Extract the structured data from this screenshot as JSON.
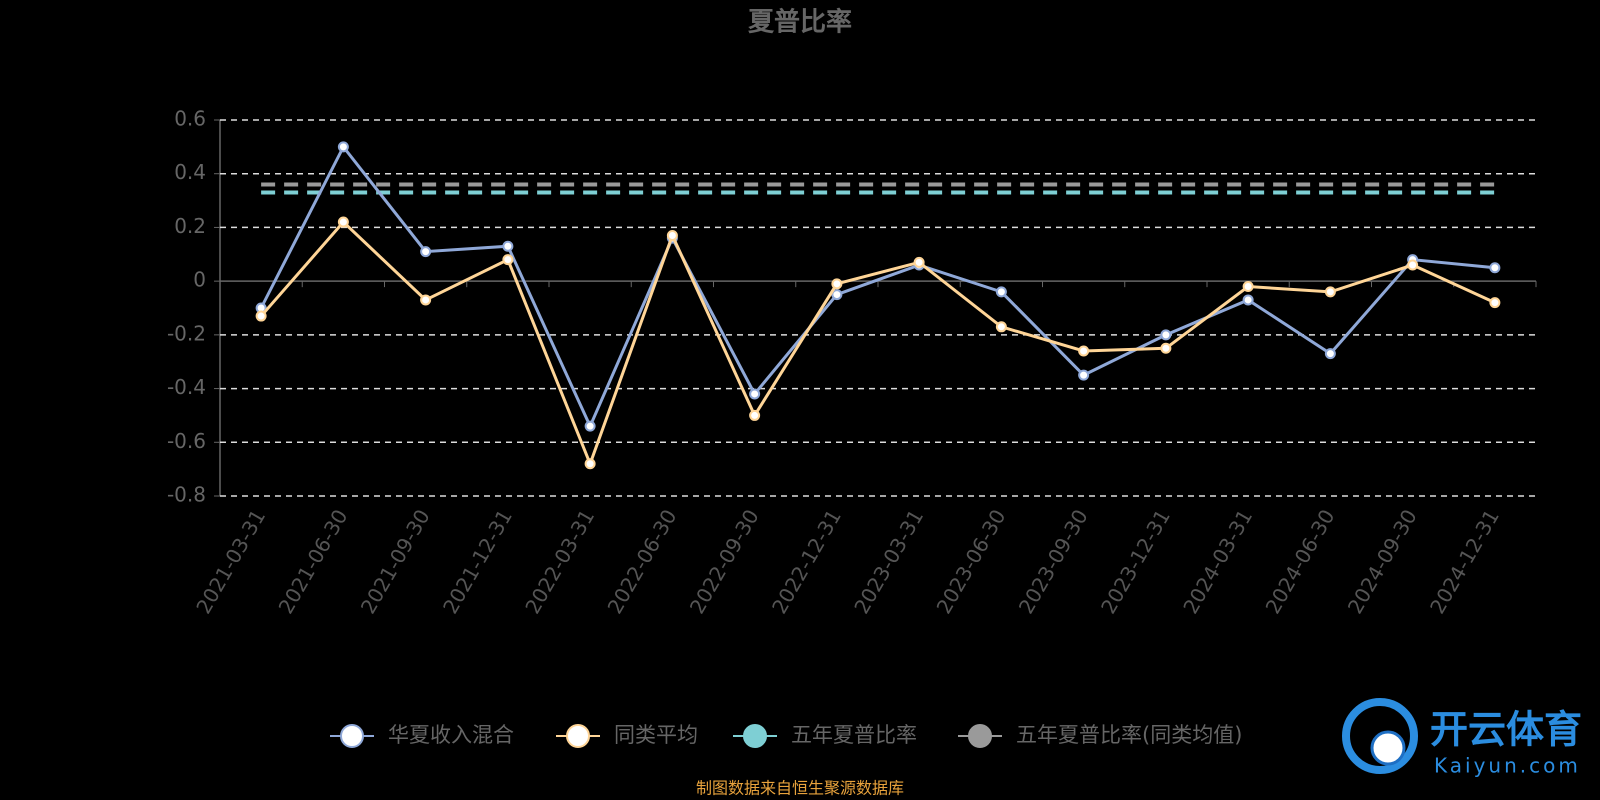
{
  "chart_data": {
    "type": "line",
    "title": "夏普比率",
    "categories": [
      "2021-03-31",
      "2021-06-30",
      "2021-09-30",
      "2021-12-31",
      "2022-03-31",
      "2022-06-30",
      "2022-09-30",
      "2022-12-31",
      "2023-03-31",
      "2023-06-30",
      "2023-09-30",
      "2023-12-31",
      "2024-03-31",
      "2024-06-30",
      "2024-09-30",
      "2024-12-31"
    ],
    "series": [
      {
        "name": "华夏收入混合",
        "color": "#8fa8d8",
        "values": [
          -0.1,
          0.5,
          0.11,
          0.13,
          -0.54,
          0.16,
          -0.42,
          -0.05,
          0.06,
          -0.04,
          -0.35,
          -0.2,
          -0.07,
          -0.27,
          0.08,
          0.05
        ]
      },
      {
        "name": "同类平均",
        "color": "#ffd597",
        "values": [
          -0.13,
          0.22,
          -0.07,
          0.08,
          -0.68,
          0.17,
          -0.5,
          -0.01,
          0.07,
          -0.17,
          -0.26,
          -0.25,
          -0.02,
          -0.04,
          0.06,
          -0.08
        ]
      },
      {
        "name": "五年夏普比率",
        "color": "#7ecfd4",
        "values": [
          0.33,
          0.33,
          0.33,
          0.33,
          0.33,
          0.33,
          0.33,
          0.33,
          0.33,
          0.33,
          0.33,
          0.33,
          0.33,
          0.33,
          0.33,
          0.33
        ]
      },
      {
        "name": "五年夏普比率(同类均值)",
        "color": "#9a9a9a",
        "values": [
          0.36,
          0.36,
          0.36,
          0.36,
          0.36,
          0.36,
          0.36,
          0.36,
          0.36,
          0.36,
          0.36,
          0.36,
          0.36,
          0.36,
          0.36,
          0.36
        ]
      }
    ],
    "ylim": [
      -0.8,
      0.6
    ],
    "yticks": [
      -0.8,
      -0.6,
      -0.4,
      -0.2,
      0,
      0.2,
      0.4,
      0.6
    ],
    "grid": true,
    "legend": "bottom",
    "source": "制图数据来自恒生聚源数据库"
  },
  "watermark": {
    "name": "开云体育",
    "url": "Kaiyun.com"
  }
}
